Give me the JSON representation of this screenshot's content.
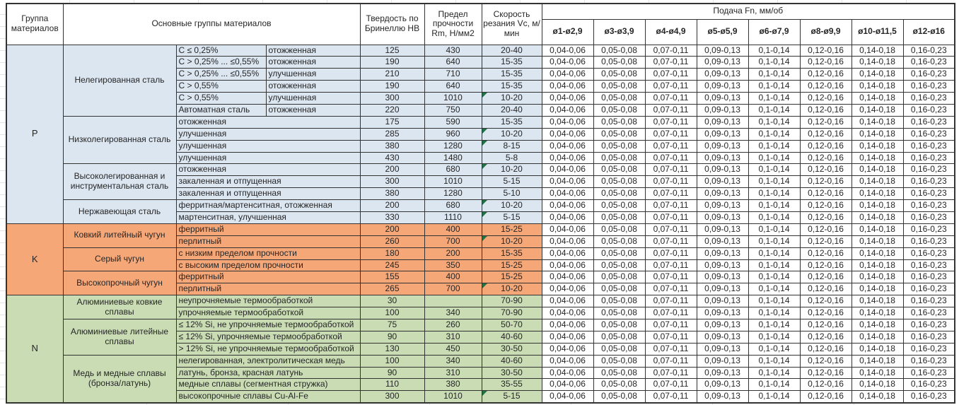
{
  "header": {
    "col_group": "Группа материалов",
    "col_main": "Основные группы материалов",
    "col_hb": "Твердость по Бринеллю HB",
    "col_rm": "Предел прочности Rm, Н/мм2",
    "col_vc": "Скорость резания Vc, м/мин",
    "feed_title": "Подача Fn, мм/об",
    "feed_cols": [
      "ø1-ø2,9",
      "ø3-ø3,9",
      "ø4-ø4,9",
      "ø5-ø5,9",
      "ø6-ø7,9",
      "ø8-ø9,9",
      "ø10-ø11,5",
      "ø12-ø16"
    ]
  },
  "feed_values": [
    "0,04-0,06",
    "0,05-0,08",
    "0,07-0,11",
    "0,09-0,13",
    "0,1-0,14",
    "0,12-0,16",
    "0,14-0,18",
    "0,16-0,23"
  ],
  "colors": {
    "group_p": "#dce6f1",
    "group_k": "#f5a778",
    "group_n": "#c9dcb4",
    "flag_triangle": "#217346"
  },
  "groups": [
    {
      "letter": "P",
      "color": "#dce6f1",
      "sections": [
        {
          "name": "Нелегированная сталь",
          "rows": [
            {
              "spec": "С ≤ 0,25%",
              "state": "отожженная",
              "hb": "125",
              "rm": "430",
              "vc": "20-40",
              "flag": false
            },
            {
              "spec": "С > 0,25% ... ≤0,55%",
              "state": "отожженная",
              "hb": "190",
              "rm": "640",
              "vc": "15-35",
              "flag": false
            },
            {
              "spec": "С > 0,25% ... ≤0,55%",
              "state": "улучшенная",
              "hb": "210",
              "rm": "710",
              "vc": "15-35",
              "flag": false
            },
            {
              "spec": "С > 0,55%",
              "state": "отожженная",
              "hb": "190",
              "rm": "640",
              "vc": "15-35",
              "flag": false
            },
            {
              "spec": "С > 0,55%",
              "state": "улучшенная",
              "hb": "300",
              "rm": "1010",
              "vc": "10-20",
              "flag": true
            },
            {
              "spec": "Автоматная сталь",
              "state": "отожженная",
              "hb": "220",
              "rm": "750",
              "vc": "20-40",
              "flag": false
            }
          ]
        },
        {
          "name": "Низколегированная сталь",
          "rows": [
            {
              "spec": "отожженная",
              "state": null,
              "hb": "175",
              "rm": "590",
              "vc": "15-35",
              "flag": false
            },
            {
              "spec": "улучшенная",
              "state": null,
              "hb": "285",
              "rm": "960",
              "vc": "10-20",
              "flag": true
            },
            {
              "spec": "улучшенная",
              "state": null,
              "hb": "380",
              "rm": "1280",
              "vc": "8-15",
              "flag": true
            },
            {
              "spec": "улучшенная",
              "state": null,
              "hb": "430",
              "rm": "1480",
              "vc": "5-8",
              "flag": false
            }
          ]
        },
        {
          "name": "Высоколегированная и инструментальная сталь",
          "rows": [
            {
              "spec": "отожженная",
              "state": null,
              "hb": "200",
              "rm": "680",
              "vc": "10-20",
              "flag": true
            },
            {
              "spec": "закаленная и отпущенная",
              "state": null,
              "hb": "300",
              "rm": "1010",
              "vc": "5-15",
              "flag": false
            },
            {
              "spec": "закаленная и отпущенная",
              "state": null,
              "hb": "380",
              "rm": "1280",
              "vc": "5-10",
              "flag": false
            }
          ]
        },
        {
          "name": "Нержавеющая сталь",
          "rows": [
            {
              "spec": "ферритная/мартенситная, отожженная",
              "state": null,
              "hb": "200",
              "rm": "680",
              "vc": "10-20",
              "flag": true
            },
            {
              "spec": "мартенситная, улучшенная",
              "state": null,
              "hb": "330",
              "rm": "1110",
              "vc": "5-15",
              "flag": true
            }
          ]
        }
      ]
    },
    {
      "letter": "K",
      "color": "#f5a778",
      "sections": [
        {
          "name": "Ковкий литейный чугун",
          "rows": [
            {
              "spec": "ферритный",
              "state": null,
              "hb": "200",
              "rm": "400",
              "vc": "15-25",
              "flag": false
            },
            {
              "spec": "перлитный",
              "state": null,
              "hb": "260",
              "rm": "700",
              "vc": "10-20",
              "flag": true
            }
          ]
        },
        {
          "name": "Серый чугун",
          "rows": [
            {
              "spec": "с низким пределом прочности",
              "state": null,
              "hb": "180",
              "rm": "200",
              "vc": "15-35",
              "flag": false
            },
            {
              "spec": "с высоким пределом прочности",
              "state": null,
              "hb": "245",
              "rm": "350",
              "vc": "15-25",
              "flag": false
            }
          ]
        },
        {
          "name": "Высокопрочный чугун",
          "rows": [
            {
              "spec": "ферритный",
              "state": null,
              "hb": "155",
              "rm": "400",
              "vc": "15-25",
              "flag": false
            },
            {
              "spec": "перлитный",
              "state": null,
              "hb": "265",
              "rm": "700",
              "vc": "10-20",
              "flag": true
            }
          ]
        }
      ]
    },
    {
      "letter": "N",
      "color": "#c9dcb4",
      "sections": [
        {
          "name": "Алюминиевые ковкие сплавы",
          "rows": [
            {
              "spec": "неупрочняемые термообработкой",
              "state": null,
              "hb": "30",
              "rm": "",
              "vc": "70-90",
              "flag": false
            },
            {
              "spec": "упрочняемые термообработкой",
              "state": null,
              "hb": "100",
              "rm": "340",
              "vc": "70-90",
              "flag": false
            }
          ]
        },
        {
          "name": "Алюминиевые литейные сплавы",
          "rows": [
            {
              "spec": "≤ 12% Si, не упрочняемые термообработкой",
              "state": null,
              "hb": "75",
              "rm": "260",
              "vc": "50-70",
              "flag": false
            },
            {
              "spec": "≤ 12% Si, упрочняемые термообработкой",
              "state": null,
              "hb": "90",
              "rm": "310",
              "vc": "40-60",
              "flag": false
            },
            {
              "spec": "> 12% Si, не упрочняемые термообработкой",
              "state": null,
              "hb": "130",
              "rm": "450",
              "vc": "30-50",
              "flag": false
            }
          ]
        },
        {
          "name": "Медь и медные сплавы (бронза/латунь)",
          "rows": [
            {
              "spec": "нелегированная, электролитическая медь",
              "state": null,
              "hb": "100",
              "rm": "340",
              "vc": "40-60",
              "flag": false
            },
            {
              "spec": "латунь, бронза, красная латунь",
              "state": null,
              "hb": "90",
              "rm": "310",
              "vc": "30-50",
              "flag": false
            },
            {
              "spec": "медные сплавы (сегментная стружка)",
              "state": null,
              "hb": "110",
              "rm": "380",
              "vc": "35-55",
              "flag": false
            },
            {
              "spec": "высокопрочные сплавы Cu-Al-Fe",
              "state": null,
              "hb": "300",
              "rm": "1010",
              "vc": "5-15",
              "flag": true
            }
          ]
        }
      ]
    }
  ]
}
